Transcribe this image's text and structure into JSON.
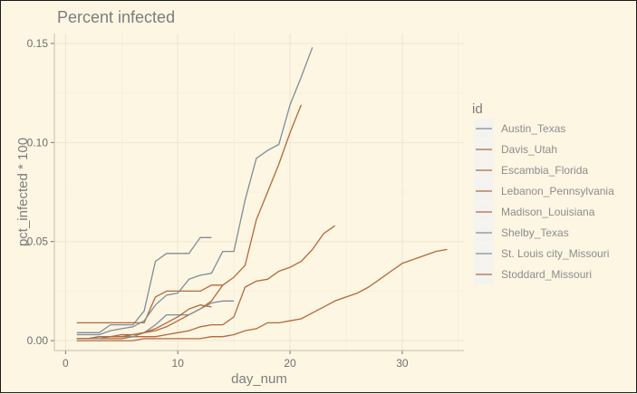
{
  "chart_data": {
    "type": "line",
    "title": "Percent infected",
    "xlabel": "day_num",
    "ylabel": "pct_infected * 100",
    "xlim": [
      -1,
      35.5
    ],
    "ylim": [
      -0.005,
      0.155
    ],
    "x_ticks": [
      0,
      10,
      20,
      30
    ],
    "y_ticks": [
      0.0,
      0.05,
      0.1,
      0.15
    ],
    "x_tick_labels": [
      "0",
      "10",
      "20",
      "30"
    ],
    "y_tick_labels": [
      "0.00",
      "0.05",
      "0.10",
      "0.15"
    ],
    "grid": true,
    "legend": {
      "title": "id",
      "position": "right"
    },
    "series": [
      {
        "name": "Austin_Texas",
        "color": "#808d97",
        "points": [
          [
            1,
            0.004
          ],
          [
            2,
            0.004
          ],
          [
            3,
            0.004
          ],
          [
            4,
            0.008
          ],
          [
            5,
            0.008
          ],
          [
            6,
            0.008
          ],
          [
            7,
            0.015
          ],
          [
            8,
            0.04
          ],
          [
            9,
            0.044
          ],
          [
            10,
            0.044
          ],
          [
            11,
            0.044
          ],
          [
            12,
            0.052
          ],
          [
            13,
            0.052
          ]
        ]
      },
      {
        "name": "Davis_Utah",
        "color": "#b4683c",
        "points": [
          [
            1,
            0.009
          ],
          [
            2,
            0.009
          ],
          [
            3,
            0.009
          ],
          [
            4,
            0.009
          ],
          [
            5,
            0.009
          ],
          [
            6,
            0.009
          ],
          [
            7,
            0.009
          ],
          [
            8,
            0.022
          ],
          [
            9,
            0.025
          ],
          [
            10,
            0.025
          ],
          [
            11,
            0.025
          ],
          [
            12,
            0.025
          ],
          [
            13,
            0.028
          ],
          [
            14,
            0.028
          ]
        ]
      },
      {
        "name": "Escambia_Florida",
        "color": "#b4683c",
        "points": [
          [
            1,
            0.001
          ],
          [
            2,
            0.001
          ],
          [
            3,
            0.002
          ],
          [
            4,
            0.002
          ],
          [
            5,
            0.003
          ],
          [
            6,
            0.003
          ],
          [
            7,
            0.004
          ],
          [
            8,
            0.005
          ],
          [
            9,
            0.007
          ],
          [
            10,
            0.01
          ],
          [
            11,
            0.013
          ],
          [
            12,
            0.016
          ],
          [
            13,
            0.02
          ],
          [
            14,
            0.028
          ],
          [
            15,
            0.032
          ],
          [
            16,
            0.038
          ],
          [
            17,
            0.061
          ],
          [
            18,
            0.075
          ],
          [
            19,
            0.089
          ],
          [
            20,
            0.105
          ],
          [
            21,
            0.119
          ]
        ]
      },
      {
        "name": "Lebanon_Pennsylvania",
        "color": "#b4683c",
        "points": [
          [
            1,
            0.001
          ],
          [
            2,
            0.001
          ],
          [
            3,
            0.001
          ],
          [
            4,
            0.001
          ],
          [
            5,
            0.001
          ],
          [
            6,
            0.002
          ],
          [
            7,
            0.002
          ],
          [
            8,
            0.002
          ],
          [
            9,
            0.003
          ],
          [
            10,
            0.004
          ],
          [
            11,
            0.005
          ],
          [
            12,
            0.007
          ],
          [
            13,
            0.008
          ],
          [
            14,
            0.008
          ],
          [
            15,
            0.012
          ],
          [
            16,
            0.027
          ],
          [
            17,
            0.03
          ],
          [
            18,
            0.031
          ],
          [
            19,
            0.035
          ],
          [
            20,
            0.037
          ],
          [
            21,
            0.04
          ],
          [
            22,
            0.046
          ],
          [
            23,
            0.054
          ],
          [
            24,
            0.058
          ]
        ]
      },
      {
        "name": "Madison_Louisiana",
        "color": "#b4683c",
        "points": [
          [
            1,
            0.0
          ],
          [
            2,
            0.0
          ],
          [
            3,
            0.0
          ],
          [
            4,
            0.0
          ],
          [
            5,
            0.0
          ],
          [
            6,
            0.0
          ],
          [
            7,
            0.001
          ],
          [
            8,
            0.001
          ],
          [
            9,
            0.001
          ],
          [
            10,
            0.001
          ],
          [
            11,
            0.001
          ],
          [
            12,
            0.001
          ],
          [
            13,
            0.002
          ],
          [
            14,
            0.002
          ],
          [
            15,
            0.003
          ],
          [
            16,
            0.005
          ],
          [
            17,
            0.006
          ],
          [
            18,
            0.009
          ],
          [
            19,
            0.009
          ],
          [
            20,
            0.01
          ],
          [
            21,
            0.011
          ],
          [
            22,
            0.014
          ],
          [
            23,
            0.017
          ],
          [
            24,
            0.02
          ],
          [
            25,
            0.022
          ],
          [
            26,
            0.024
          ],
          [
            27,
            0.027
          ],
          [
            28,
            0.031
          ],
          [
            29,
            0.035
          ],
          [
            30,
            0.039
          ],
          [
            31,
            0.041
          ],
          [
            32,
            0.043
          ],
          [
            33,
            0.045
          ],
          [
            34,
            0.046
          ]
        ]
      },
      {
        "name": "Shelby_Texas",
        "color": "#808d97",
        "points": [
          [
            1,
            0.001
          ],
          [
            2,
            0.001
          ],
          [
            3,
            0.001
          ],
          [
            4,
            0.002
          ],
          [
            5,
            0.002
          ],
          [
            6,
            0.002
          ],
          [
            7,
            0.004
          ],
          [
            8,
            0.008
          ],
          [
            9,
            0.013
          ],
          [
            10,
            0.013
          ],
          [
            11,
            0.013
          ],
          [
            12,
            0.016
          ],
          [
            13,
            0.019
          ],
          [
            14,
            0.02
          ],
          [
            15,
            0.02
          ]
        ]
      },
      {
        "name": "St. Louis city_Missouri",
        "color": "#808d97",
        "points": [
          [
            1,
            0.003
          ],
          [
            2,
            0.003
          ],
          [
            3,
            0.003
          ],
          [
            4,
            0.005
          ],
          [
            5,
            0.006
          ],
          [
            6,
            0.007
          ],
          [
            7,
            0.01
          ],
          [
            8,
            0.018
          ],
          [
            9,
            0.023
          ],
          [
            10,
            0.024
          ],
          [
            11,
            0.031
          ],
          [
            12,
            0.033
          ],
          [
            13,
            0.034
          ],
          [
            14,
            0.045
          ],
          [
            15,
            0.045
          ],
          [
            16,
            0.071
          ],
          [
            17,
            0.092
          ],
          [
            18,
            0.096
          ],
          [
            19,
            0.099
          ],
          [
            20,
            0.119
          ],
          [
            21,
            0.133
          ],
          [
            22,
            0.148
          ]
        ]
      },
      {
        "name": "Stoddard_Missouri",
        "color": "#b4683c",
        "points": [
          [
            1,
            0.001
          ],
          [
            2,
            0.001
          ],
          [
            3,
            0.002
          ],
          [
            4,
            0.002
          ],
          [
            5,
            0.002
          ],
          [
            6,
            0.003
          ],
          [
            7,
            0.004
          ],
          [
            8,
            0.006
          ],
          [
            9,
            0.009
          ],
          [
            10,
            0.012
          ],
          [
            11,
            0.016
          ],
          [
            12,
            0.018
          ],
          [
            13,
            0.017
          ]
        ]
      }
    ]
  }
}
